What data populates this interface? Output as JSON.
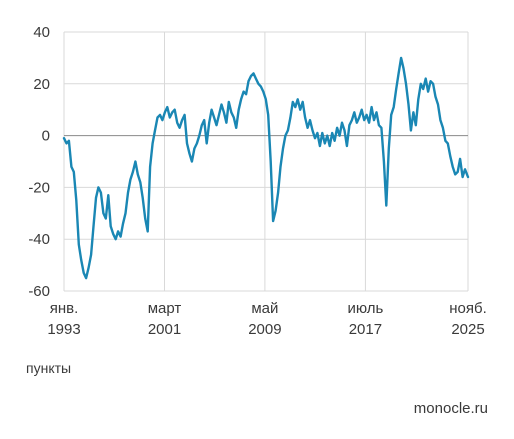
{
  "chart_data": {
    "type": "line",
    "title": "",
    "xlabel": "",
    "ylabel": "",
    "unit_label": "пункты",
    "ylim": [
      -60,
      40
    ],
    "yticks": [
      40,
      20,
      0,
      -20,
      -40,
      -60
    ],
    "xlim": [
      1993.0,
      2025.84
    ],
    "xticks": [
      {
        "x": 1993.0,
        "label1": "янв.",
        "label2": "1993"
      },
      {
        "x": 2001.17,
        "label1": "март",
        "label2": "2001"
      },
      {
        "x": 2009.33,
        "label1": "май",
        "label2": "2009"
      },
      {
        "x": 2017.5,
        "label1": "июль",
        "label2": "2017"
      },
      {
        "x": 2025.84,
        "label1": "нояб.",
        "label2": "2025"
      }
    ],
    "grid": true,
    "line_color": "#1a87b4",
    "grid_color": "#d9d9d9",
    "zero_line_color": "#8a8a8a",
    "series": [
      {
        "points": [
          [
            1993.0,
            -1
          ],
          [
            1993.2,
            -3
          ],
          [
            1993.4,
            -2
          ],
          [
            1993.6,
            -12
          ],
          [
            1993.8,
            -14
          ],
          [
            1994.0,
            -25
          ],
          [
            1994.2,
            -42
          ],
          [
            1994.4,
            -48
          ],
          [
            1994.6,
            -53
          ],
          [
            1994.8,
            -55
          ],
          [
            1995.0,
            -51
          ],
          [
            1995.2,
            -46
          ],
          [
            1995.4,
            -35
          ],
          [
            1995.6,
            -24
          ],
          [
            1995.8,
            -20
          ],
          [
            1996.0,
            -22
          ],
          [
            1996.2,
            -30
          ],
          [
            1996.4,
            -32
          ],
          [
            1996.6,
            -23
          ],
          [
            1996.8,
            -35
          ],
          [
            1997.0,
            -38
          ],
          [
            1997.2,
            -40
          ],
          [
            1997.4,
            -37
          ],
          [
            1997.6,
            -39
          ],
          [
            1997.8,
            -34
          ],
          [
            1998.0,
            -30
          ],
          [
            1998.2,
            -22
          ],
          [
            1998.4,
            -17
          ],
          [
            1998.6,
            -14
          ],
          [
            1998.8,
            -10
          ],
          [
            1999.0,
            -15
          ],
          [
            1999.2,
            -18
          ],
          [
            1999.4,
            -24
          ],
          [
            1999.6,
            -32
          ],
          [
            1999.8,
            -37
          ],
          [
            2000.0,
            -12
          ],
          [
            2000.2,
            -3
          ],
          [
            2000.4,
            2
          ],
          [
            2000.6,
            7
          ],
          [
            2000.8,
            8
          ],
          [
            2001.0,
            6
          ],
          [
            2001.2,
            9
          ],
          [
            2001.4,
            11
          ],
          [
            2001.6,
            7
          ],
          [
            2001.8,
            9
          ],
          [
            2002.0,
            10
          ],
          [
            2002.2,
            5
          ],
          [
            2002.4,
            3
          ],
          [
            2002.6,
            6
          ],
          [
            2002.8,
            8
          ],
          [
            2003.0,
            -3
          ],
          [
            2003.2,
            -7
          ],
          [
            2003.4,
            -10
          ],
          [
            2003.6,
            -5
          ],
          [
            2003.8,
            -3
          ],
          [
            2004.0,
            0
          ],
          [
            2004.2,
            4
          ],
          [
            2004.4,
            6
          ],
          [
            2004.6,
            -3
          ],
          [
            2004.8,
            5
          ],
          [
            2005.0,
            10
          ],
          [
            2005.2,
            7
          ],
          [
            2005.4,
            4
          ],
          [
            2005.6,
            8
          ],
          [
            2005.8,
            12
          ],
          [
            2006.0,
            9
          ],
          [
            2006.2,
            5
          ],
          [
            2006.4,
            13
          ],
          [
            2006.6,
            9
          ],
          [
            2006.8,
            7
          ],
          [
            2007.0,
            3
          ],
          [
            2007.2,
            10
          ],
          [
            2007.4,
            14
          ],
          [
            2007.6,
            17
          ],
          [
            2007.8,
            16
          ],
          [
            2008.0,
            21
          ],
          [
            2008.2,
            23
          ],
          [
            2008.4,
            24
          ],
          [
            2008.6,
            22
          ],
          [
            2008.8,
            20
          ],
          [
            2009.0,
            19
          ],
          [
            2009.2,
            17
          ],
          [
            2009.4,
            14
          ],
          [
            2009.6,
            8
          ],
          [
            2009.8,
            -10
          ],
          [
            2010.0,
            -33
          ],
          [
            2010.2,
            -29
          ],
          [
            2010.4,
            -22
          ],
          [
            2010.6,
            -12
          ],
          [
            2010.8,
            -5
          ],
          [
            2011.0,
            0
          ],
          [
            2011.2,
            2
          ],
          [
            2011.4,
            7
          ],
          [
            2011.6,
            13
          ],
          [
            2011.8,
            11
          ],
          [
            2012.0,
            14
          ],
          [
            2012.2,
            10
          ],
          [
            2012.4,
            13
          ],
          [
            2012.6,
            7
          ],
          [
            2012.8,
            3
          ],
          [
            2013.0,
            6
          ],
          [
            2013.2,
            2
          ],
          [
            2013.4,
            -1
          ],
          [
            2013.6,
            1
          ],
          [
            2013.8,
            -4
          ],
          [
            2014.0,
            1
          ],
          [
            2014.2,
            -3
          ],
          [
            2014.4,
            0
          ],
          [
            2014.6,
            -4
          ],
          [
            2014.8,
            1
          ],
          [
            2015.0,
            -2
          ],
          [
            2015.2,
            3
          ],
          [
            2015.4,
            0
          ],
          [
            2015.6,
            5
          ],
          [
            2015.8,
            2
          ],
          [
            2016.0,
            -4
          ],
          [
            2016.2,
            4
          ],
          [
            2016.4,
            6
          ],
          [
            2016.6,
            9
          ],
          [
            2016.8,
            5
          ],
          [
            2017.0,
            7
          ],
          [
            2017.2,
            10
          ],
          [
            2017.4,
            6
          ],
          [
            2017.6,
            8
          ],
          [
            2017.8,
            5
          ],
          [
            2018.0,
            11
          ],
          [
            2018.2,
            6
          ],
          [
            2018.4,
            9
          ],
          [
            2018.6,
            4
          ],
          [
            2018.8,
            3
          ],
          [
            2019.0,
            -10
          ],
          [
            2019.2,
            -27
          ],
          [
            2019.4,
            -5
          ],
          [
            2019.6,
            8
          ],
          [
            2019.8,
            11
          ],
          [
            2020.0,
            18
          ],
          [
            2020.2,
            24
          ],
          [
            2020.4,
            30
          ],
          [
            2020.6,
            26
          ],
          [
            2020.8,
            20
          ],
          [
            2021.0,
            12
          ],
          [
            2021.2,
            2
          ],
          [
            2021.4,
            9
          ],
          [
            2021.6,
            4
          ],
          [
            2021.8,
            14
          ],
          [
            2022.0,
            20
          ],
          [
            2022.2,
            18
          ],
          [
            2022.4,
            22
          ],
          [
            2022.6,
            17
          ],
          [
            2022.8,
            21
          ],
          [
            2023.0,
            20
          ],
          [
            2023.2,
            15
          ],
          [
            2023.4,
            12
          ],
          [
            2023.6,
            6
          ],
          [
            2023.8,
            3
          ],
          [
            2024.0,
            -2
          ],
          [
            2024.2,
            -3
          ],
          [
            2024.4,
            -8
          ],
          [
            2024.6,
            -12
          ],
          [
            2024.8,
            -15
          ],
          [
            2025.0,
            -14
          ],
          [
            2025.2,
            -9
          ],
          [
            2025.4,
            -16
          ],
          [
            2025.6,
            -13
          ],
          [
            2025.84,
            -16
          ]
        ]
      }
    ]
  },
  "footer": {
    "unit": "пункты",
    "source": "monocle.ru"
  }
}
